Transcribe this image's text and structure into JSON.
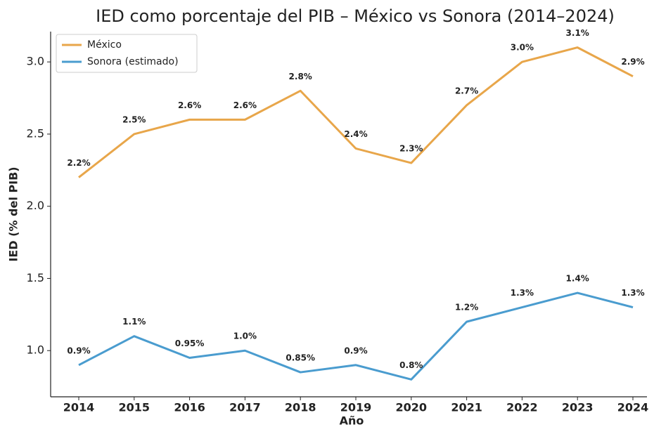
{
  "chart_data": {
    "type": "line",
    "title": "IED como porcentaje del PIB – México vs Sonora (2014–2024)",
    "x_label": "Año",
    "y_label": "IED (% del PIB)",
    "categories": [
      "2014",
      "2015",
      "2016",
      "2017",
      "2018",
      "2019",
      "2020",
      "2021",
      "2022",
      "2023",
      "2024"
    ],
    "series": [
      {
        "name": "México",
        "color": "#e8a64a",
        "values": [
          2.2,
          2.5,
          2.6,
          2.6,
          2.8,
          2.4,
          2.3,
          2.7,
          3.0,
          3.1,
          2.9
        ],
        "value_labels": [
          "2.2%",
          "2.5%",
          "2.6%",
          "2.6%",
          "2.8%",
          "2.4%",
          "2.3%",
          "2.7%",
          "3.0%",
          "3.1%",
          "2.9%"
        ]
      },
      {
        "name": "Sonora (estimado)",
        "color": "#4a9ccf",
        "values": [
          0.9,
          1.1,
          0.95,
          1.0,
          0.85,
          0.9,
          0.8,
          1.2,
          1.3,
          1.4,
          1.3
        ],
        "value_labels": [
          "0.9%",
          "1.1%",
          "0.95%",
          "1.0%",
          "0.85%",
          "0.9%",
          "0.8%",
          "1.2%",
          "1.3%",
          "1.4%",
          "1.3%"
        ]
      }
    ],
    "ylim": [
      0.68,
      3.21
    ],
    "yticks": [
      {
        "value": 1,
        "label": "1.0"
      },
      1.5,
      {
        "value": 2,
        "label": "2.0"
      },
      2.5,
      {
        "value": 3,
        "label": "3.0"
      }
    ],
    "legend": "upper left"
  }
}
